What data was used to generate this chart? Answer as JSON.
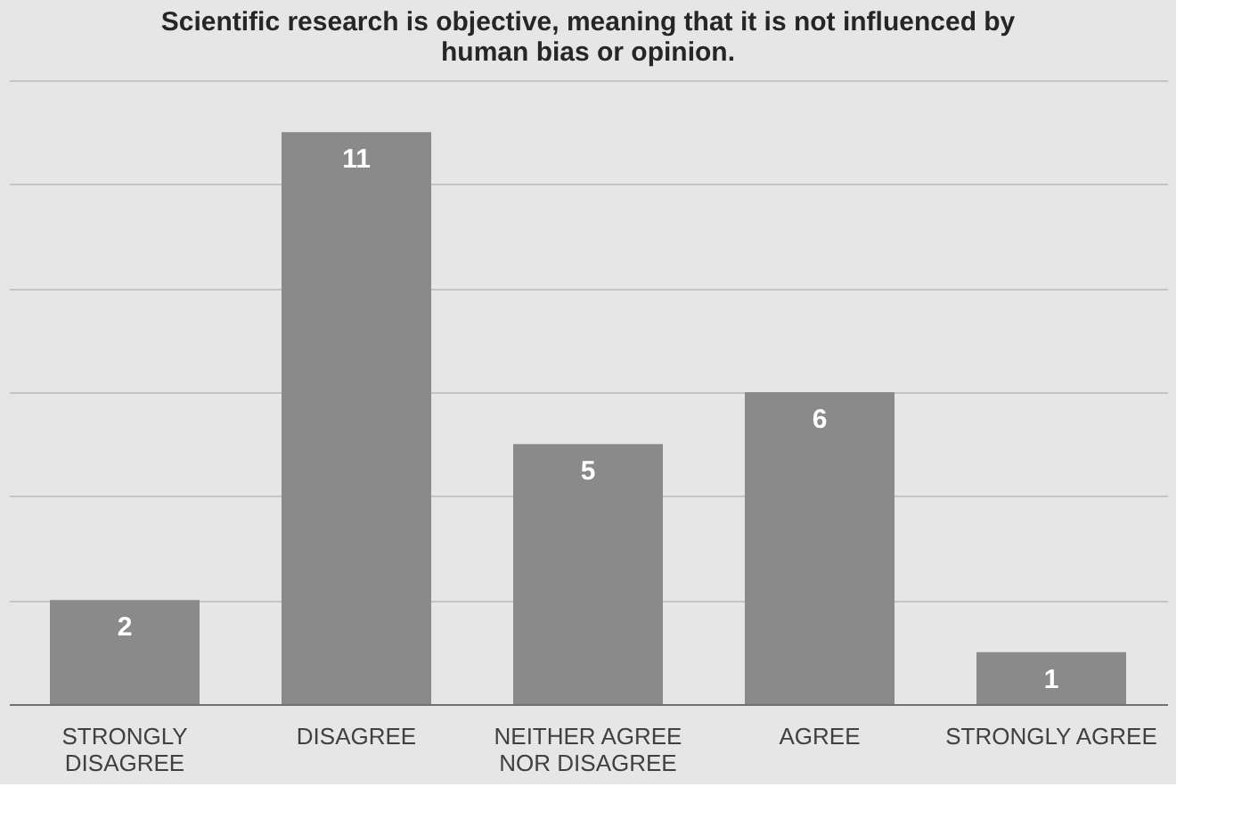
{
  "chart_data": {
    "type": "bar",
    "title": "Scientific research is objective, meaning that it is not influenced by human bias or opinion.",
    "categories": [
      "STRONGLY DISAGREE",
      "DISAGREE",
      "NEITHER AGREE NOR DISAGREE",
      "AGREE",
      "STRONGLY AGREE"
    ],
    "values": [
      2,
      11,
      5,
      6,
      1
    ],
    "color": "#8a8a8a",
    "data_labels": true,
    "ylim": [
      0,
      12
    ],
    "yticks": [
      {
        "value": 0,
        "label": null
      },
      {
        "value": 2,
        "label": null
      },
      {
        "value": 4,
        "label": null
      },
      {
        "value": 6,
        "label": null
      },
      {
        "value": 8,
        "label": null
      },
      {
        "value": 10,
        "label": null
      },
      {
        "value": 12,
        "label": null
      }
    ],
    "grid": "y",
    "tick_labels": "x"
  }
}
